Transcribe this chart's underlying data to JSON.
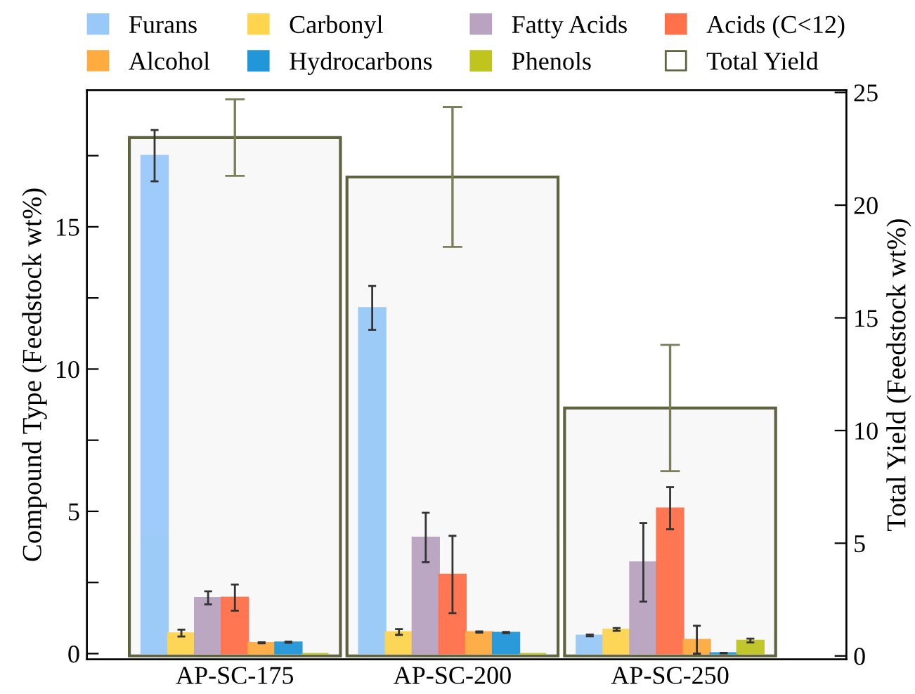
{
  "chart_data": {
    "type": "bar",
    "ylabel": "Compound Type (Feedstock wt%)",
    "y2label": "Total Yield (Feedstock wt%)",
    "categories": [
      "AP-SC-175",
      "AP-SC-200",
      "AP-SC-250"
    ],
    "ylim": [
      -0.2,
      19.8
    ],
    "yticks": [
      0,
      {
        "value": 2.5,
        "label": null
      },
      5,
      {
        "value": 7.5,
        "label": null
      },
      10,
      {
        "value": 12.5,
        "label": null
      },
      15,
      {
        "value": 17.5,
        "label": null
      }
    ],
    "y2lim": [
      -0.15,
      25.1
    ],
    "y2ticks": [
      0,
      5,
      10,
      15,
      20,
      25
    ],
    "grid": false,
    "legend": "top",
    "series": [
      {
        "name": "Total Yield",
        "color": "#f8f8f8",
        "axis": "y2",
        "values": [
          23.0,
          21.25,
          11.0
        ],
        "errors": [
          1.7,
          3.1,
          2.8
        ]
      },
      {
        "name": "Furans",
        "color": "#99c9f9",
        "values": [
          17.5,
          12.15,
          0.64
        ],
        "errors": [
          0.9,
          0.77,
          0.03
        ]
      },
      {
        "name": "Carbonyl",
        "color": "#ffd54f",
        "values": [
          0.72,
          0.76,
          0.85
        ],
        "errors": [
          0.12,
          0.1,
          0.05
        ]
      },
      {
        "name": "Fatty Acids",
        "color": "#b9a3c0",
        "values": [
          1.96,
          4.08,
          3.21
        ],
        "errors": [
          0.23,
          0.87,
          1.38
        ]
      },
      {
        "name": "Acids (C<12)",
        "color": "#ff714a",
        "values": [
          1.97,
          2.78,
          5.11
        ],
        "errors": [
          0.46,
          1.36,
          0.74
        ]
      },
      {
        "name": "Alcohol",
        "color": "#ffab40",
        "values": [
          0.38,
          0.76,
          0.49
        ],
        "errors": [
          0.02,
          0.02,
          0.49
        ]
      },
      {
        "name": "Hydrocarbons",
        "color": "#2196d9",
        "values": [
          0.4,
          0.74,
          0.02
        ],
        "errors": [
          0.02,
          0.02,
          0.01
        ]
      },
      {
        "name": "Phenols",
        "color": "#bfc41f",
        "values": [
          0,
          0,
          0.46
        ],
        "errors": [
          null,
          null,
          0.07
        ]
      }
    ]
  }
}
